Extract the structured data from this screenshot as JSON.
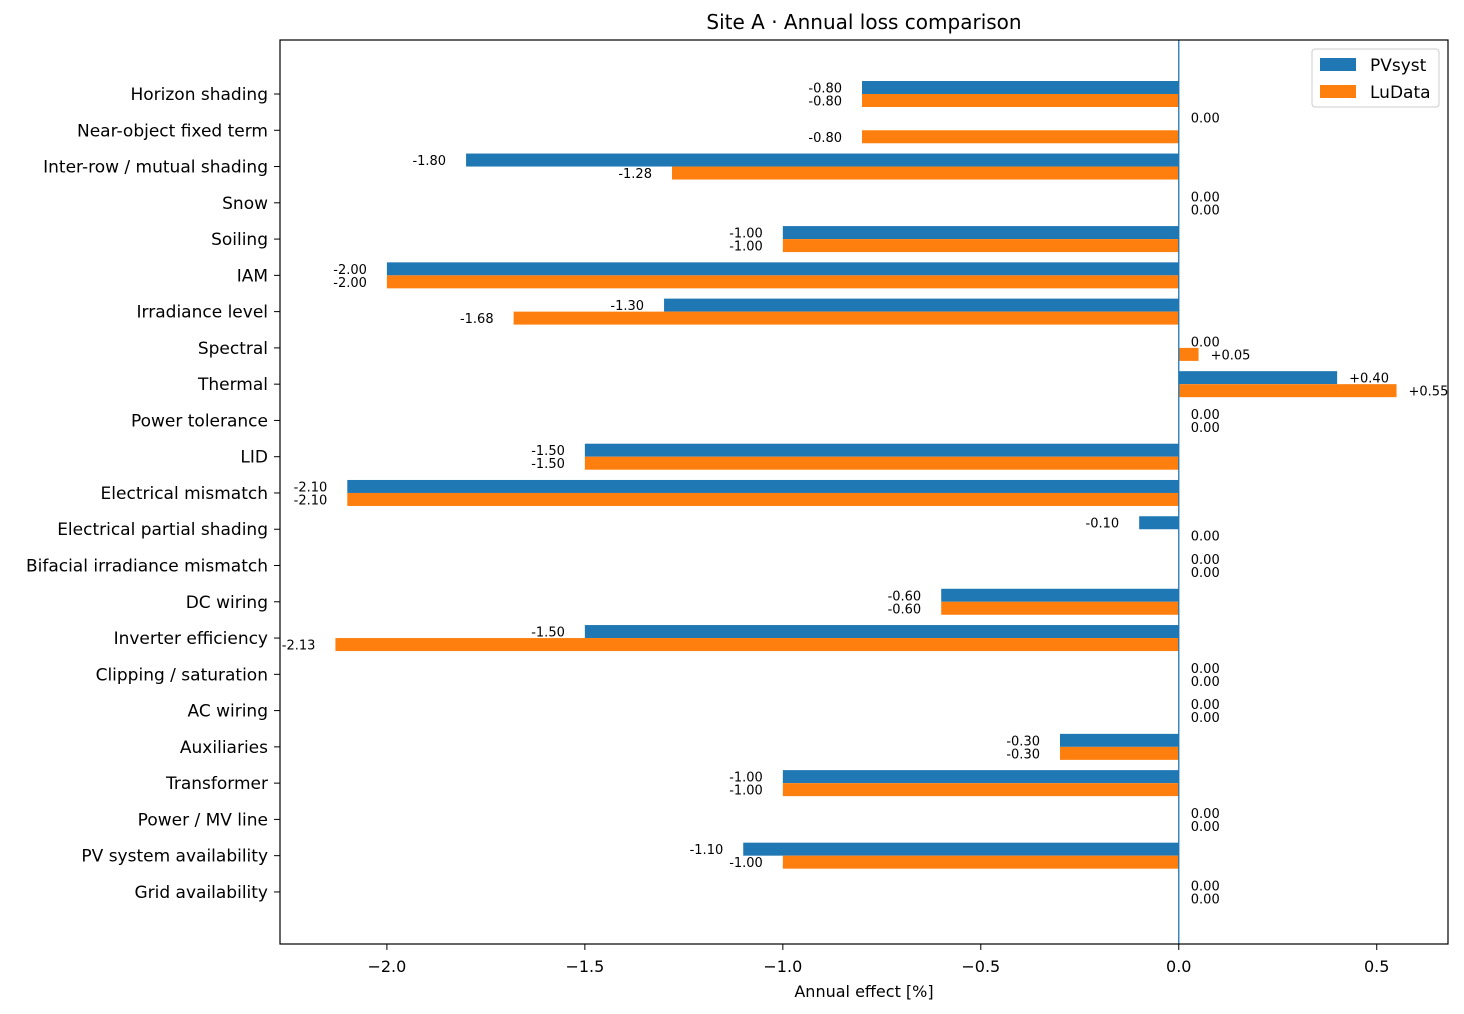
{
  "chart_data": {
    "type": "bar",
    "orientation": "horizontal",
    "title": "Site A · Annual loss comparison",
    "xlabel": "Annual effect [%]",
    "ylabel": "",
    "xlim": [
      -2.27,
      0.68
    ],
    "xticks": [
      -2.0,
      -1.5,
      -1.0,
      -0.5,
      0.0,
      0.5
    ],
    "xtick_labels": [
      "−2.0",
      "−1.5",
      "−1.0",
      "−0.5",
      "0.0",
      "0.5"
    ],
    "grid": false,
    "legend_position": "top-right",
    "reference_line_x": 0,
    "categories": [
      "Horizon shading",
      "Near-object fixed term",
      "Inter-row / mutual shading",
      "Snow",
      "Soiling",
      "IAM",
      "Irradiance level",
      "Spectral",
      "Thermal",
      "Power tolerance",
      "LID",
      "Electrical mismatch",
      "Electrical partial shading",
      "Bifacial irradiance mismatch",
      "DC wiring",
      "Inverter efficiency",
      "Clipping / saturation",
      "AC wiring",
      "Auxiliaries",
      "Transformer",
      "Power / MV line",
      "PV system availability",
      "Grid availability"
    ],
    "series": [
      {
        "name": "PVsyst",
        "color": "#1f77b4",
        "values": [
          -0.8,
          0,
          -1.8,
          0,
          -1.0,
          -2.0,
          -1.3,
          0,
          0.4,
          0,
          -1.5,
          -2.1,
          -0.1,
          0,
          -0.6,
          -1.5,
          0,
          0,
          -0.3,
          -1.0,
          0,
          -1.1,
          0
        ],
        "labels": [
          "-0.80",
          "",
          "-1.80",
          "0.00",
          "-1.00",
          "-2.00",
          "-1.30",
          "0.00",
          "+0.40",
          "0.00",
          "-1.50",
          "-2.10",
          "-0.10",
          "0.00",
          "-0.60",
          "-1.50",
          "0.00",
          "0.00",
          "-0.30",
          "-1.00",
          "0.00",
          "-1.10",
          "0.00"
        ]
      },
      {
        "name": "LuData",
        "color": "#ff7f0e",
        "values": [
          -0.8,
          -0.8,
          -1.28,
          0,
          -1.0,
          -2.0,
          -1.68,
          0.05,
          0.55,
          0,
          -1.5,
          -2.1,
          0,
          0,
          -0.6,
          -2.13,
          0,
          0,
          -0.3,
          -1.0,
          0,
          -1.0,
          0
        ],
        "labels": [
          "-0.80",
          "-0.80",
          "-1.28",
          "0.00",
          "-1.00",
          "-2.00",
          "-1.68",
          "+0.05",
          "+0.55",
          "0.00",
          "-1.50",
          "-2.10",
          "0.00",
          "0.00",
          "-0.60",
          "-2.13",
          "0.00",
          "0.00",
          "-0.30",
          "-1.00",
          "0.00",
          "-1.00",
          "0.00"
        ]
      }
    ],
    "extra_labels": [
      {
        "category": "Near-object fixed term",
        "text": "0.00"
      }
    ]
  }
}
